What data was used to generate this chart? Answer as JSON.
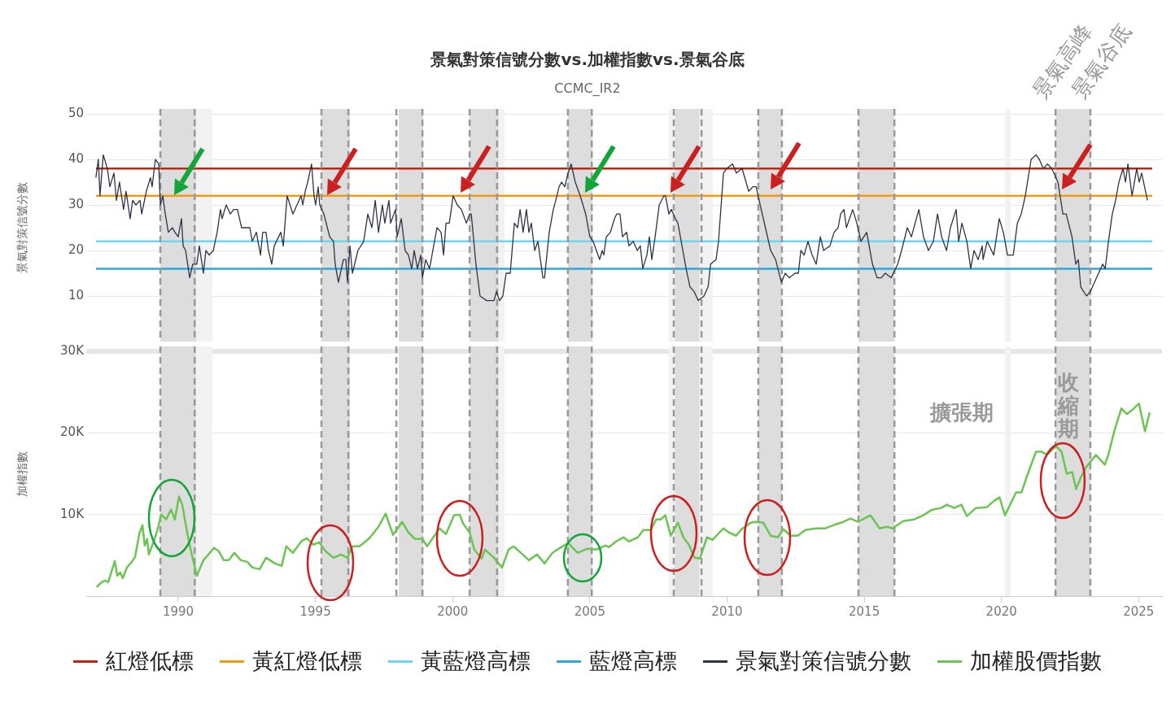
{
  "chart_data": [
    {
      "type": "line",
      "title": "景氣對策信號分數vs.加權指數vs.景氣谷底",
      "subtitle": "CCMC_IR2",
      "ylabel": "景氣對策信號分數",
      "xlim": [
        1986.65,
        2025.85
      ],
      "ylim": [
        0,
        50
      ],
      "yticks": [
        10,
        20,
        30,
        40,
        50
      ],
      "grid": "y",
      "legend": "bottom",
      "tick_labels": "y",
      "series": [
        {
          "name": "景氣對策信號分數",
          "color": "#2e3346",
          "x": [
            1987.0,
            1987.09,
            1987.15,
            1987.27,
            1987.42,
            1987.51,
            1987.66,
            1987.75,
            1987.86,
            1988.01,
            1988.1,
            1988.25,
            1988.34,
            1988.46,
            1988.61,
            1988.67,
            1988.84,
            1988.99,
            1989.05,
            1989.17,
            1989.29,
            1989.35,
            1989.44,
            1989.53,
            1989.64,
            1989.79,
            1989.88,
            1990.0,
            1990.12,
            1990.18,
            1990.27,
            1990.42,
            1990.53,
            1990.68,
            1990.77,
            1990.92,
            1991.01,
            1991.13,
            1991.28,
            1991.42,
            1991.54,
            1991.6,
            1991.75,
            1991.9,
            1992.02,
            1992.16,
            1992.31,
            1992.4,
            1992.61,
            1992.7,
            1992.85,
            1993.0,
            1993.08,
            1993.2,
            1993.29,
            1993.41,
            1993.5,
            1993.74,
            1993.83,
            1993.97,
            1994.18,
            1994.33,
            1994.48,
            1994.54,
            1994.63,
            1994.72,
            1994.86,
            1994.95,
            1995.01,
            1995.1,
            1995.16,
            1995.31,
            1995.52,
            1995.66,
            1995.72,
            1995.84,
            1996.02,
            1996.11,
            1996.17,
            1996.26,
            1996.35,
            1996.55,
            1996.76,
            1996.91,
            1997.06,
            1997.18,
            1997.3,
            1997.44,
            1997.53,
            1997.68,
            1997.74,
            1997.92,
            1997.98,
            1998.13,
            1998.27,
            1998.39,
            1998.51,
            1998.6,
            1998.72,
            1998.84,
            1998.9,
            1999.02,
            1999.16,
            1999.31,
            1999.43,
            1999.58,
            1999.67,
            1999.76,
            1999.88,
            2000.02,
            2000.17,
            2000.32,
            2000.5,
            2000.62,
            2000.68,
            2000.85,
            2001.0,
            2001.24,
            2001.51,
            2001.6,
            2001.71,
            2001.83,
            2001.95,
            2002.1,
            2002.25,
            2002.37,
            2002.46,
            2002.57,
            2002.69,
            2002.78,
            2002.87,
            2002.99,
            2003.11,
            2003.29,
            2003.35,
            2003.52,
            2003.67,
            2003.76,
            2003.88,
            2003.97,
            2004.09,
            2004.21,
            2004.32,
            2004.47,
            2004.65,
            2004.85,
            2005.0,
            2005.12,
            2005.24,
            2005.36,
            2005.45,
            2005.51,
            2005.6,
            2005.75,
            2005.9,
            2005.98,
            2006.1,
            2006.19,
            2006.34,
            2006.43,
            2006.58,
            2006.73,
            2006.84,
            2006.93,
            2007.08,
            2007.17,
            2007.26,
            2007.38,
            2007.53,
            2007.7,
            2007.76,
            2007.88,
            2007.97,
            2008.12,
            2008.21,
            2008.36,
            2008.51,
            2008.65,
            2008.8,
            2008.95,
            2009.16,
            2009.31,
            2009.4,
            2009.6,
            2009.69,
            2009.87,
            2009.99,
            2010.2,
            2010.34,
            2010.55,
            2010.79,
            2010.94,
            2011.06,
            2011.17,
            2011.59,
            2011.77,
            2011.98,
            2012.12,
            2012.27,
            2012.48,
            2012.6,
            2012.69,
            2012.81,
            2012.95,
            2013.1,
            2013.25,
            2013.4,
            2013.52,
            2013.75,
            2013.9,
            2014.05,
            2014.14,
            2014.26,
            2014.35,
            2014.58,
            2014.73,
            2014.88,
            2015.09,
            2015.3,
            2015.47,
            2015.62,
            2015.77,
            2015.98,
            2016.22,
            2016.36,
            2016.57,
            2016.72,
            2016.99,
            2017.16,
            2017.34,
            2017.52,
            2017.67,
            2017.82,
            2018.0,
            2018.14,
            2018.35,
            2018.44,
            2018.56,
            2018.74,
            2018.88,
            2019.0,
            2019.15,
            2019.3,
            2019.33,
            2019.48,
            2019.72,
            2019.92,
            2020.07,
            2020.22,
            2020.43,
            2020.58,
            2020.72,
            2020.87,
            2021.08,
            2021.26,
            2021.38,
            2021.53,
            2021.68,
            2021.83,
            2021.91,
            2022.06,
            2022.24,
            2022.36,
            2022.57,
            2022.71,
            2022.8,
            2022.89,
            2023.1,
            2023.24,
            2023.39,
            2023.54,
            2023.69,
            2023.78,
            2023.9,
            2024.04,
            2024.16,
            2024.28,
            2024.43,
            2024.52,
            2024.61,
            2024.76,
            2024.93,
            2025.02,
            2025.11,
            2025.32
          ],
          "values": [
            36,
            40,
            32,
            41,
            38,
            34,
            37,
            31,
            35,
            29,
            33,
            27,
            31,
            30,
            31,
            28,
            33,
            36,
            34,
            40,
            39,
            30,
            32,
            28,
            24,
            25,
            24,
            23,
            27,
            21,
            20,
            14,
            17,
            17,
            21,
            15,
            20,
            19,
            20,
            24,
            29,
            27,
            30,
            28,
            29,
            29,
            25,
            25,
            25,
            22,
            24,
            19,
            24,
            24,
            20,
            17,
            21,
            24,
            21,
            32,
            28,
            30,
            32,
            30,
            33,
            35,
            39,
            32,
            30,
            34,
            30,
            28,
            23,
            22,
            17,
            13,
            18,
            18,
            13,
            21,
            15,
            20,
            22,
            28,
            25,
            31,
            24,
            30,
            26,
            31,
            26,
            29,
            23,
            27,
            20,
            19,
            16,
            20,
            16,
            19,
            14,
            18,
            16,
            21,
            25,
            24,
            19,
            26,
            26,
            32,
            30,
            29,
            26,
            28,
            28,
            17,
            10,
            9,
            9,
            11,
            9,
            10,
            15,
            15,
            26,
            25,
            29,
            24,
            29,
            24,
            26,
            20,
            22,
            14,
            14,
            24,
            29,
            31,
            34,
            35,
            34,
            37,
            39,
            35,
            32,
            28,
            23,
            22,
            20,
            18,
            20,
            19,
            23,
            24,
            27,
            28,
            28,
            23,
            24,
            21,
            22,
            20,
            21,
            16,
            19,
            23,
            18,
            23,
            30,
            32,
            32,
            28,
            29,
            27,
            26,
            21,
            16,
            12,
            11,
            9,
            10,
            12,
            17,
            18,
            22,
            37,
            38,
            39,
            37,
            38,
            33,
            34,
            34,
            31,
            20,
            18,
            13,
            15,
            14,
            15,
            15,
            20,
            19,
            22,
            19,
            17,
            23,
            20,
            21,
            24,
            25,
            28,
            29,
            25,
            29,
            26,
            22,
            24,
            17,
            14,
            14,
            15,
            14,
            17,
            20,
            25,
            23,
            29,
            23,
            20,
            22,
            28,
            23,
            20,
            25,
            29,
            22,
            26,
            22,
            16,
            20,
            18,
            21,
            18,
            22,
            19,
            27,
            24,
            19,
            19,
            26,
            28,
            32,
            40,
            41,
            40,
            38,
            39,
            38,
            37,
            35,
            28,
            28,
            23,
            17,
            18,
            12,
            10,
            11,
            13,
            15,
            17,
            16,
            22,
            28,
            31,
            35,
            38,
            35,
            39,
            32,
            38,
            35,
            37,
            31
          ]
        }
      ],
      "ref_lines": [
        {
          "axis": "y",
          "value": 38,
          "label": "紅燈低標",
          "color": "#c0260f"
        },
        {
          "axis": "y",
          "value": 32,
          "label": "黃紅燈低標",
          "color": "#f29b12"
        },
        {
          "axis": "y",
          "value": 22,
          "label": "黃藍燈高標",
          "color": "#6ad8f5"
        },
        {
          "axis": "y",
          "value": 16,
          "label": "藍燈高標",
          "color": "#2ea7dc"
        },
        {
          "axis": "x",
          "value": 1989.35,
          "color": "#999999",
          "line_style": "dashed"
        },
        {
          "axis": "x",
          "value": 1990.6,
          "color": "#999999",
          "line_style": "dashed"
        },
        {
          "axis": "x",
          "value": 1995.22,
          "color": "#999999",
          "line_style": "dashed"
        },
        {
          "axis": "x",
          "value": 1996.2,
          "color": "#999999",
          "line_style": "dashed"
        },
        {
          "axis": "x",
          "value": 1997.95,
          "color": "#999999",
          "line_style": "dashed"
        },
        {
          "axis": "x",
          "value": 1998.9,
          "color": "#999999",
          "line_style": "dashed"
        },
        {
          "axis": "x",
          "value": 2000.62,
          "color": "#999999",
          "line_style": "dashed"
        },
        {
          "axis": "x",
          "value": 2001.62,
          "color": "#999999",
          "line_style": "dashed"
        },
        {
          "axis": "x",
          "value": 2004.2,
          "color": "#999999",
          "line_style": "dashed"
        },
        {
          "axis": "x",
          "value": 2005.07,
          "color": "#999999",
          "line_style": "dashed"
        },
        {
          "axis": "x",
          "value": 2008.06,
          "color": "#999999",
          "line_style": "dashed"
        },
        {
          "axis": "x",
          "value": 2009.07,
          "color": "#999999",
          "line_style": "dashed"
        },
        {
          "axis": "x",
          "value": 2011.14,
          "color": "#999999",
          "line_style": "dashed"
        },
        {
          "axis": "x",
          "value": 2012.0,
          "color": "#999999",
          "line_style": "dashed"
        },
        {
          "axis": "x",
          "value": 2014.79,
          "color": "#999999",
          "line_style": "dashed"
        },
        {
          "axis": "x",
          "value": 2016.1,
          "color": "#999999",
          "line_style": "dashed"
        },
        {
          "axis": "x",
          "value": 2021.97,
          "color": "#999999",
          "line_style": "dashed"
        },
        {
          "axis": "x",
          "value": 2023.24,
          "color": "#999999",
          "line_style": "dashed"
        }
      ],
      "bands": [
        {
          "axis": "x",
          "from": 1989.35,
          "to": 1990.65,
          "color": "#dddddd"
        },
        {
          "axis": "x",
          "from": 1990.65,
          "to": 1991.25,
          "color": "#f2f2f2"
        },
        {
          "axis": "x",
          "from": 1995.22,
          "to": 1996.26,
          "color": "#dddddd"
        },
        {
          "axis": "x",
          "from": 1998.04,
          "to": 1998.93,
          "color": "#dddddd"
        },
        {
          "axis": "x",
          "from": 2000.62,
          "to": 2001.68,
          "color": "#dddddd"
        },
        {
          "axis": "x",
          "from": 2001.68,
          "to": 2001.89,
          "color": "#f2f2f2"
        },
        {
          "axis": "x",
          "from": 2004.2,
          "to": 2005.1,
          "color": "#dddddd"
        },
        {
          "axis": "x",
          "from": 2007.87,
          "to": 2008.1,
          "color": "#f2f2f2"
        },
        {
          "axis": "x",
          "from": 2008.1,
          "to": 2009.0,
          "color": "#dddddd"
        },
        {
          "axis": "x",
          "from": 2009.0,
          "to": 2009.48,
          "color": "#f2f2f2"
        },
        {
          "axis": "x",
          "from": 2011.14,
          "to": 2012.0,
          "color": "#dddddd"
        },
        {
          "axis": "x",
          "from": 2014.79,
          "to": 2016.1,
          "color": "#dddddd"
        },
        {
          "axis": "x",
          "from": 2020.13,
          "to": 2020.34,
          "color": "#f2f2f2"
        },
        {
          "axis": "x",
          "from": 2021.97,
          "to": 2023.24,
          "color": "#dddddd"
        }
      ],
      "annotations": [
        "景氣高峰",
        "景氣谷底"
      ]
    },
    {
      "type": "line",
      "ylabel": "加權指數",
      "xlim": [
        1986.65,
        2025.85
      ],
      "xticks": [
        1990,
        1995,
        2000,
        2005,
        2010,
        2015,
        2020,
        2025
      ],
      "ylim": [
        0,
        30000
      ],
      "yticks": [
        {
          "value": 10000,
          "label": "10K"
        },
        {
          "value": 20000,
          "label": "20K"
        },
        {
          "value": 30000,
          "label": "30K"
        }
      ],
      "grid": "y",
      "legend": "bottom",
      "series": [
        {
          "name": "加權股價指數",
          "color": "#6cc552",
          "x": [
            1987.03,
            1987.21,
            1987.33,
            1987.45,
            1987.69,
            1987.78,
            1987.89,
            1987.98,
            1988.13,
            1988.31,
            1988.43,
            1988.58,
            1988.7,
            1988.78,
            1988.87,
            1988.93,
            1989.14,
            1989.26,
            1989.38,
            1989.56,
            1989.74,
            1989.88,
            1990.03,
            1990.15,
            1990.3,
            1990.44,
            1990.68,
            1990.92,
            1991.1,
            1991.3,
            1991.48,
            1991.66,
            1991.84,
            1992.05,
            1992.28,
            1992.52,
            1992.7,
            1992.97,
            1993.2,
            1993.53,
            1993.77,
            1993.94,
            1994.18,
            1994.51,
            1994.69,
            1994.92,
            1995.13,
            1995.37,
            1995.66,
            1995.93,
            1996.17,
            1996.35,
            1996.61,
            1996.97,
            1997.3,
            1997.56,
            1997.83,
            1998.16,
            1998.39,
            1998.63,
            1998.9,
            1999.07,
            1999.52,
            1999.76,
            2000.05,
            2000.26,
            2000.38,
            2000.62,
            2000.79,
            2001.06,
            2001.18,
            2001.48,
            2001.8,
            2002.04,
            2002.22,
            2002.49,
            2002.78,
            2003.08,
            2003.35,
            2003.64,
            2003.91,
            2004.21,
            2004.56,
            2004.89,
            2005.24,
            2005.57,
            2005.7,
            2005.96,
            2006.23,
            2006.42,
            2006.75,
            2006.95,
            2007.22,
            2007.42,
            2007.58,
            2007.75,
            2007.95,
            2008.21,
            2008.41,
            2008.61,
            2008.81,
            2009.01,
            2009.27,
            2009.47,
            2009.67,
            2009.87,
            2010.07,
            2010.33,
            2010.53,
            2010.86,
            2011.06,
            2011.32,
            2011.59,
            2011.85,
            2012.05,
            2012.32,
            2012.58,
            2012.85,
            2013.25,
            2013.58,
            2013.97,
            2014.24,
            2014.5,
            2014.77,
            2015.23,
            2015.56,
            2015.83,
            2016.03,
            2016.42,
            2016.82,
            2017.15,
            2017.48,
            2017.81,
            2018.01,
            2018.28,
            2018.54,
            2018.74,
            2019.07,
            2019.47,
            2019.74,
            2019.93,
            2020.13,
            2020.26,
            2020.53,
            2020.73,
            2020.93,
            2021.26,
            2021.46,
            2021.66,
            2021.99,
            2022.19,
            2022.38,
            2022.58,
            2022.72,
            2022.91,
            2023.11,
            2023.44,
            2023.77,
            2023.91,
            2024.11,
            2024.37,
            2024.57,
            2024.83,
            2025.01,
            2025.23,
            2025.4
          ],
          "values": [
            1100,
            1700,
            1900,
            1700,
            4300,
            2500,
            2900,
            2200,
            3500,
            4200,
            4800,
            7600,
            8700,
            6200,
            7000,
            5100,
            7000,
            8300,
            10000,
            9400,
            10600,
            9400,
            12200,
            11200,
            8300,
            5900,
            2500,
            4400,
            5100,
            5900,
            5500,
            4400,
            4400,
            5300,
            4400,
            4200,
            3500,
            3300,
            4700,
            4000,
            3700,
            6100,
            5300,
            6800,
            7100,
            6300,
            6600,
            5500,
            4700,
            5100,
            4700,
            6100,
            6100,
            7100,
            8500,
            10100,
            7500,
            9100,
            7800,
            7000,
            7000,
            6100,
            8300,
            7600,
            9900,
            10000,
            8900,
            7800,
            5700,
            4600,
            5700,
            4800,
            3500,
            5700,
            6100,
            5300,
            4400,
            5100,
            4000,
            5300,
            5900,
            6500,
            5300,
            5800,
            5700,
            6200,
            6000,
            6700,
            7200,
            6700,
            7200,
            8100,
            8100,
            9400,
            9400,
            9900,
            7400,
            9000,
            7200,
            6300,
            4700,
            4600,
            7200,
            6900,
            7600,
            8300,
            7800,
            7400,
            8200,
            9000,
            9100,
            9000,
            7400,
            7200,
            8200,
            7400,
            7400,
            8100,
            8300,
            8300,
            8800,
            9100,
            9500,
            9100,
            9900,
            8300,
            8500,
            8300,
            9200,
            9400,
            9900,
            10600,
            10800,
            11200,
            10800,
            11200,
            9800,
            10800,
            10900,
            11700,
            12100,
            9900,
            10800,
            12700,
            12700,
            14700,
            17700,
            17700,
            17300,
            18400,
            17700,
            15000,
            15200,
            13100,
            14700,
            15900,
            17300,
            16100,
            17500,
            20200,
            23000,
            22300,
            23000,
            23600,
            20200,
            22500
          ]
        }
      ],
      "ref_lines": [
        {
          "axis": "x",
          "value": 1989.35,
          "color": "#999999",
          "line_style": "dashed"
        },
        {
          "axis": "x",
          "value": 1990.6,
          "color": "#999999",
          "line_style": "dashed"
        },
        {
          "axis": "x",
          "value": 1995.22,
          "color": "#999999",
          "line_style": "dashed"
        },
        {
          "axis": "x",
          "value": 1996.2,
          "color": "#999999",
          "line_style": "dashed"
        },
        {
          "axis": "x",
          "value": 1997.95,
          "color": "#999999",
          "line_style": "dashed"
        },
        {
          "axis": "x",
          "value": 1998.9,
          "color": "#999999",
          "line_style": "dashed"
        },
        {
          "axis": "x",
          "value": 2000.62,
          "color": "#999999",
          "line_style": "dashed"
        },
        {
          "axis": "x",
          "value": 2001.62,
          "color": "#999999",
          "line_style": "dashed"
        },
        {
          "axis": "x",
          "value": 2004.2,
          "color": "#999999",
          "line_style": "dashed"
        },
        {
          "axis": "x",
          "value": 2005.07,
          "color": "#999999",
          "line_style": "dashed"
        },
        {
          "axis": "x",
          "value": 2008.06,
          "color": "#999999",
          "line_style": "dashed"
        },
        {
          "axis": "x",
          "value": 2009.07,
          "color": "#999999",
          "line_style": "dashed"
        },
        {
          "axis": "x",
          "value": 2011.14,
          "color": "#999999",
          "line_style": "dashed"
        },
        {
          "axis": "x",
          "value": 2012.0,
          "color": "#999999",
          "line_style": "dashed"
        },
        {
          "axis": "x",
          "value": 2014.79,
          "color": "#999999",
          "line_style": "dashed"
        },
        {
          "axis": "x",
          "value": 2016.1,
          "color": "#999999",
          "line_style": "dashed"
        },
        {
          "axis": "x",
          "value": 2021.97,
          "color": "#999999",
          "line_style": "dashed"
        },
        {
          "axis": "x",
          "value": 2023.24,
          "color": "#999999",
          "line_style": "dashed"
        }
      ],
      "bands": [
        {
          "axis": "x",
          "from": 1989.35,
          "to": 1990.65,
          "color": "#dddddd"
        },
        {
          "axis": "x",
          "from": 1990.65,
          "to": 1991.25,
          "color": "#f2f2f2"
        },
        {
          "axis": "x",
          "from": 1995.22,
          "to": 1996.26,
          "color": "#dddddd"
        },
        {
          "axis": "x",
          "from": 1998.04,
          "to": 1998.93,
          "color": "#dddddd"
        },
        {
          "axis": "x",
          "from": 2000.62,
          "to": 2001.68,
          "color": "#dddddd"
        },
        {
          "axis": "x",
          "from": 2001.68,
          "to": 2001.89,
          "color": "#f2f2f2"
        },
        {
          "axis": "x",
          "from": 2004.2,
          "to": 2005.1,
          "color": "#dddddd"
        },
        {
          "axis": "x",
          "from": 2007.87,
          "to": 2008.1,
          "color": "#f2f2f2"
        },
        {
          "axis": "x",
          "from": 2008.1,
          "to": 2009.0,
          "color": "#dddddd"
        },
        {
          "axis": "x",
          "from": 2009.0,
          "to": 2009.48,
          "color": "#f2f2f2"
        },
        {
          "axis": "x",
          "from": 2011.14,
          "to": 2012.0,
          "color": "#dddddd"
        },
        {
          "axis": "x",
          "from": 2014.79,
          "to": 2016.1,
          "color": "#dddddd"
        },
        {
          "axis": "x",
          "from": 2020.13,
          "to": 2020.34,
          "color": "#f2f2f2"
        },
        {
          "axis": "x",
          "from": 2021.97,
          "to": 2023.24,
          "color": "#dddddd"
        }
      ],
      "annotations": [
        "擴張期",
        "收縮期"
      ]
    }
  ]
}
